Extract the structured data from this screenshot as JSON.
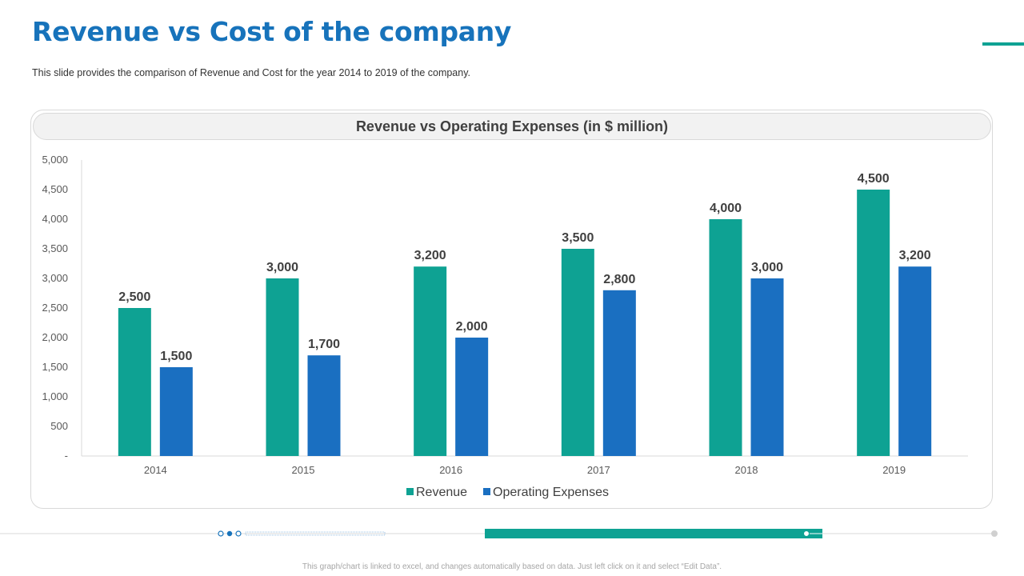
{
  "slide": {
    "title": "Revenue vs Cost of the company",
    "subtitle": "This slide provides  the comparison of Revenue  and Cost for the year 2014 to 2019 of the company.",
    "footer_note": "This graph/chart is linked to excel, and changes automatically based on data. Just left click on it and select “Edit Data”."
  },
  "colors": {
    "title": "#1773bb",
    "accent": "#0ea293",
    "revenue": "#0ea293",
    "expenses": "#1a6fc1"
  },
  "chart_data": {
    "type": "bar",
    "title": "Revenue vs Operating Expenses (in $ million)",
    "categories": [
      "2014",
      "2015",
      "2016",
      "2017",
      "2018",
      "2019"
    ],
    "series": [
      {
        "name": "Revenue",
        "values": [
          2500,
          3000,
          3200,
          3500,
          4000,
          4500
        ]
      },
      {
        "name": "Operating Expenses",
        "values": [
          1500,
          1700,
          2000,
          2800,
          3000,
          3200
        ]
      }
    ],
    "data_labels": [
      [
        "2,500",
        "3,000",
        "3,200",
        "3,500",
        "4,000",
        "4,500"
      ],
      [
        "1,500",
        "1,700",
        "2,000",
        "2,800",
        "3,000",
        "3,200"
      ]
    ],
    "ylim": [
      0,
      5000
    ],
    "yticks": [
      0,
      500,
      1000,
      1500,
      2000,
      2500,
      3000,
      3500,
      4000,
      4500,
      5000
    ],
    "ytick_labels": [
      "-",
      "500",
      "1,000",
      "1,500",
      "2,000",
      "2,500",
      "3,000",
      "3,500",
      "4,000",
      "4,500",
      "5,000"
    ],
    "legend_position": "bottom",
    "grid": false
  }
}
